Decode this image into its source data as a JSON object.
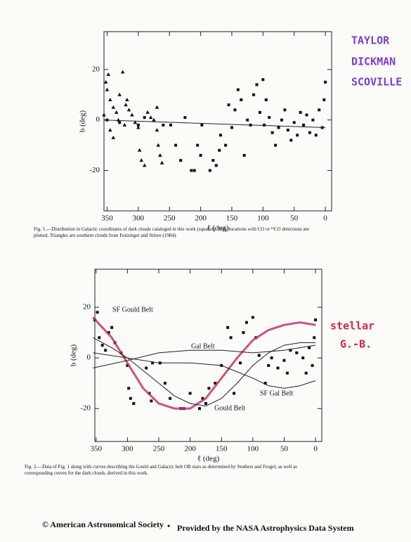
{
  "header": {
    "authors": [
      "TAYLOR",
      "DICKMAN",
      "SCOVILLE"
    ]
  },
  "chart_data": [
    {
      "type": "scatter",
      "x_label": "ℓ (deg)",
      "y_label": "b (deg)",
      "xlim": [
        355,
        -10
      ],
      "ylim": [
        -36,
        35
      ],
      "xticks": [
        350,
        300,
        250,
        200,
        150,
        100,
        50,
        0
      ],
      "yticks": [
        20,
        0,
        -20
      ],
      "series": [
        {
          "marker": "square",
          "color": "#111111",
          "x": [
            260,
            248,
            240,
            232,
            225,
            215,
            210,
            205,
            200,
            198,
            185,
            180,
            175,
            170,
            168,
            160,
            155,
            150,
            145,
            140,
            135,
            130,
            125,
            120,
            115,
            110,
            105,
            100,
            98,
            95,
            90,
            85,
            80,
            75,
            70,
            65,
            60,
            55,
            50,
            45,
            40,
            35,
            30,
            25,
            20,
            15,
            10,
            5,
            2,
            0,
            300,
            330,
            350,
            290
          ],
          "values": [
            -2,
            -2,
            -10,
            -16,
            1,
            -20,
            -20,
            -10,
            -14,
            -2,
            -20,
            -16,
            -18,
            -12,
            -6,
            -10,
            6,
            -3,
            4,
            12,
            8,
            -14,
            0,
            -2,
            10,
            14,
            3,
            16,
            -2,
            8,
            1,
            -5,
            -10,
            -3,
            0,
            4,
            -4,
            -8,
            -1,
            -6,
            3,
            -2,
            2,
            -5,
            0,
            -6,
            4,
            -3,
            8,
            15,
            -2,
            -1,
            0,
            1
          ]
        },
        {
          "marker": "triangle",
          "color": "#111111",
          "x": [
            352,
            350,
            348,
            345,
            340,
            335,
            330,
            325,
            320,
            315,
            310,
            305,
            300,
            298,
            295,
            290,
            285,
            280,
            275,
            270,
            268,
            265,
            262,
            270,
            345,
            340,
            332,
            322,
            318,
            355
          ],
          "values": [
            15,
            12,
            18,
            8,
            5,
            3,
            10,
            19,
            6,
            4,
            2,
            -1,
            -3,
            -12,
            -16,
            -18,
            3,
            1,
            0,
            -4,
            -10,
            -14,
            -17,
            5,
            -4,
            -7,
            0,
            -2,
            8,
            2
          ]
        },
        {
          "marker": "line",
          "color": "#222222",
          "x": [
            355,
            0
          ],
          "values": [
            0,
            -3
          ]
        }
      ],
      "caption": "Fig. 1.—Distribution in Galactic coordinates of dark clouds cataloged in this work (squares). Only locations with CO or ¹³CO detections are plotted. Triangles are southern clouds from Feitzinger and Stüwe (1984)."
    },
    {
      "type": "scatter",
      "x_label": "ℓ (deg)",
      "y_label": "b (deg)",
      "xlim": [
        352,
        -10
      ],
      "ylim": [
        -33,
        35
      ],
      "xticks": [
        350,
        300,
        250,
        200,
        150,
        100,
        50,
        0
      ],
      "yticks": [
        20,
        0,
        -20
      ],
      "series": [
        {
          "marker": "square",
          "color": "#111111",
          "x": [
            352,
            348,
            345,
            340,
            335,
            330,
            325,
            320,
            310,
            300,
            298,
            295,
            290,
            270,
            265,
            262,
            260,
            248,
            240,
            232,
            215,
            210,
            200,
            185,
            180,
            175,
            170,
            160,
            150,
            140,
            135,
            130,
            120,
            115,
            110,
            100,
            95,
            90,
            80,
            75,
            70,
            60,
            50,
            45,
            40,
            30,
            20,
            15,
            10,
            5,
            2,
            0
          ],
          "values": [
            15,
            18,
            8,
            5,
            3,
            10,
            12,
            6,
            2,
            -3,
            -12,
            -16,
            -18,
            -4,
            -14,
            -17,
            -2,
            -2,
            -10,
            -16,
            -20,
            -20,
            -14,
            -20,
            -16,
            -18,
            -12,
            -10,
            -3,
            12,
            8,
            -14,
            -2,
            10,
            14,
            16,
            8,
            1,
            -10,
            -3,
            0,
            -4,
            -1,
            -6,
            3,
            2,
            0,
            -6,
            4,
            -3,
            8,
            15
          ]
        },
        {
          "name": "SF Gould Belt",
          "marker": "line",
          "color": "#c8326a",
          "width": 3,
          "x": [
            355,
            325,
            300,
            275,
            250,
            225,
            200,
            175,
            150,
            125,
            100,
            75,
            50,
            25,
            0
          ],
          "values": [
            16,
            8,
            -2,
            -12,
            -18,
            -20,
            -20,
            -16,
            -8,
            0,
            7,
            11,
            13,
            14,
            13
          ]
        },
        {
          "name": "Gould Belt",
          "marker": "line",
          "color": "#222222",
          "width": 1,
          "x": [
            355,
            325,
            300,
            275,
            250,
            225,
            200,
            175,
            150,
            125,
            100,
            75,
            50,
            25,
            0
          ],
          "values": [
            8,
            4,
            0,
            -5,
            -10,
            -15,
            -18,
            -19,
            -16,
            -10,
            -3,
            2,
            5,
            6,
            6
          ]
        },
        {
          "name": "Gal Belt",
          "marker": "line",
          "color": "#222222",
          "width": 1,
          "x": [
            355,
            300,
            250,
            200,
            150,
            100,
            50,
            0
          ],
          "values": [
            -4,
            -1,
            2,
            3,
            3,
            2,
            3,
            5
          ]
        },
        {
          "name": "SF Gal Belt",
          "marker": "line",
          "color": "#222222",
          "width": 1,
          "x": [
            355,
            300,
            250,
            200,
            150,
            100,
            75,
            50,
            25,
            0
          ],
          "values": [
            2,
            0,
            -2,
            -2,
            -3,
            -8,
            -11,
            -12,
            -11,
            -9
          ]
        }
      ],
      "annotation": [
        "stellar",
        "G.-B."
      ],
      "caption": "Fig. 2.—Data of Fig. 1 along with curves describing the Gould and Galactic belt OB stars as determined by Stothers and Frogel, as well as corresponding curves for the dark clouds, derived in this work."
    }
  ],
  "footer": {
    "left": "© American Astronomical Society",
    "sep": "•",
    "right": "Provided by the NASA Astrophysics Data System"
  }
}
